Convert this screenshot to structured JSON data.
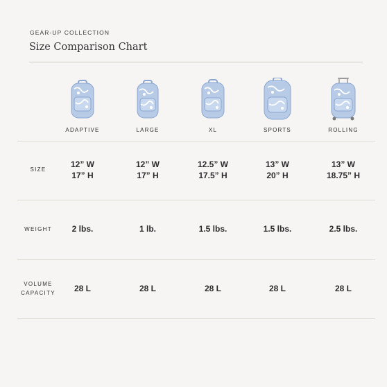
{
  "header": {
    "eyebrow": "GEAR-UP COLLECTION",
    "title": "Size Comparison Chart"
  },
  "colors": {
    "pack_body": "#b8cbe6",
    "pack_print": "#ffffff",
    "pack_trim": "#8aa6d1",
    "background": "#f6f5f3"
  },
  "products": [
    {
      "label": "ADAPTIVE",
      "size_w": "12” W",
      "size_h": "17” H",
      "weight": "2 lbs.",
      "volume": "28 L",
      "icon": "backpack-adaptive-icon"
    },
    {
      "label": "LARGE",
      "size_w": "12” W",
      "size_h": "17” H",
      "weight": "1 lb.",
      "volume": "28 L",
      "icon": "backpack-large-icon"
    },
    {
      "label": "XL",
      "size_w": "12.5” W",
      "size_h": "17.5” H",
      "weight": "1.5 lbs.",
      "volume": "28 L",
      "icon": "backpack-xl-icon"
    },
    {
      "label": "SPORTS",
      "size_w": "13” W",
      "size_h": "20” H",
      "weight": "1.5 lbs.",
      "volume": "28 L",
      "icon": "backpack-sports-icon"
    },
    {
      "label": "ROLLING",
      "size_w": "13” W",
      "size_h": "18.75” H",
      "weight": "2.5 lbs.",
      "volume": "28 L",
      "icon": "rolling-backpack-icon"
    }
  ],
  "rows": {
    "size": "SIZE",
    "weight": "WEIGHT",
    "volume_line1": "VOLUME",
    "volume_line2": "CAPACITY"
  }
}
